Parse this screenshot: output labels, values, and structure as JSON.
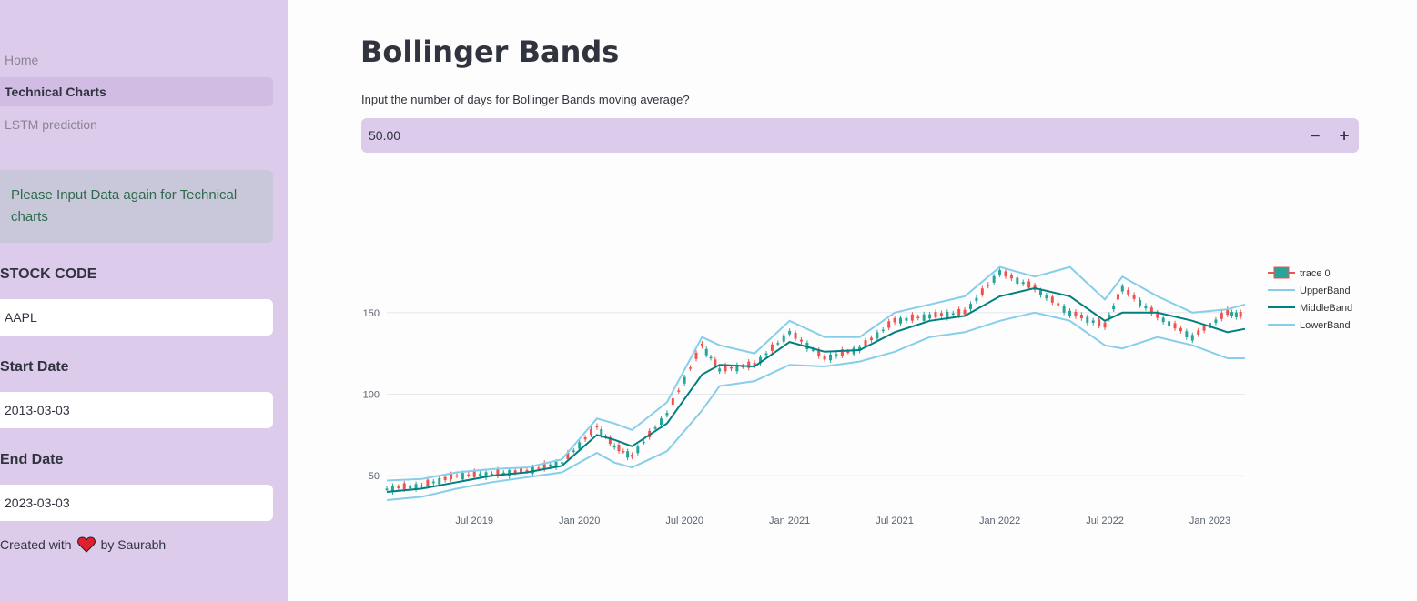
{
  "sidebar": {
    "nav": [
      {
        "label": "Home",
        "active": false
      },
      {
        "label": "Technical Charts",
        "active": true
      },
      {
        "label": "LSTM prediction",
        "active": false
      }
    ],
    "alert_text": "Please Input Data again for Technical charts",
    "fields": {
      "stock_code": {
        "label": "STOCK CODE",
        "value": "AAPL"
      },
      "start_date": {
        "label": "Start Date",
        "value": "2013-03-03"
      },
      "end_date": {
        "label": "End Date",
        "value": "2023-03-03"
      }
    },
    "credit": {
      "prefix": "Created with",
      "icon": "heart-icon",
      "suffix": "by Saurabh"
    }
  },
  "main": {
    "title": "Bollinger Bands",
    "input_label": "Input the number of days for Bollinger Bands moving average?",
    "input_value": "50.00",
    "minus_label": "−",
    "plus_label": "+"
  },
  "colors": {
    "sidebar_bg": "#dccbeb",
    "increasing": "#26a69a",
    "decreasing": "#ef5350",
    "upper_band": "#87ceeb",
    "middle_band": "#008080",
    "lower_band": "#87ceeb",
    "heart": "#e0202e"
  },
  "chart_data": {
    "type": "line",
    "title": "",
    "xlabel": "",
    "ylabel": "",
    "x_ticks": [
      "Jul 2019",
      "Jan 2020",
      "Jul 2020",
      "Jan 2021",
      "Jul 2021",
      "Jan 2022",
      "Jul 2022",
      "Jan 2023"
    ],
    "y_ticks": [
      50,
      100,
      150
    ],
    "ylim": [
      35,
      180
    ],
    "grid": true,
    "legend_position": "right",
    "x": [
      "2019-02",
      "2019-04",
      "2019-06",
      "2019-08",
      "2019-10",
      "2019-12",
      "2020-02",
      "2020-03",
      "2020-04",
      "2020-06",
      "2020-08",
      "2020-09",
      "2020-11",
      "2021-01",
      "2021-03",
      "2021-05",
      "2021-07",
      "2021-09",
      "2021-11",
      "2022-01",
      "2022-03",
      "2022-05",
      "2022-07",
      "2022-08",
      "2022-10",
      "2022-12",
      "2023-02",
      "2023-03"
    ],
    "series": [
      {
        "name": "trace 0",
        "kind": "candlestick",
        "values": [
          42,
          44,
          50,
          51,
          53,
          58,
          80,
          68,
          62,
          88,
          130,
          115,
          118,
          138,
          122,
          128,
          145,
          148,
          150,
          175,
          165,
          150,
          142,
          165,
          148,
          135,
          150,
          148
        ]
      },
      {
        "name": "UpperBand",
        "values": [
          47,
          48,
          52,
          54,
          55,
          60,
          85,
          82,
          78,
          95,
          135,
          130,
          125,
          145,
          135,
          135,
          150,
          155,
          160,
          178,
          172,
          178,
          158,
          172,
          160,
          150,
          152,
          155
        ]
      },
      {
        "name": "MiddleBand",
        "values": [
          40,
          42,
          46,
          50,
          52,
          56,
          75,
          72,
          68,
          82,
          112,
          118,
          117,
          132,
          126,
          127,
          138,
          145,
          148,
          160,
          165,
          160,
          145,
          150,
          150,
          145,
          138,
          140
        ]
      },
      {
        "name": "LowerBand",
        "values": [
          35,
          37,
          42,
          46,
          49,
          52,
          64,
          58,
          55,
          65,
          90,
          105,
          108,
          118,
          117,
          120,
          126,
          135,
          138,
          145,
          150,
          145,
          130,
          128,
          135,
          130,
          122,
          122
        ]
      }
    ]
  }
}
